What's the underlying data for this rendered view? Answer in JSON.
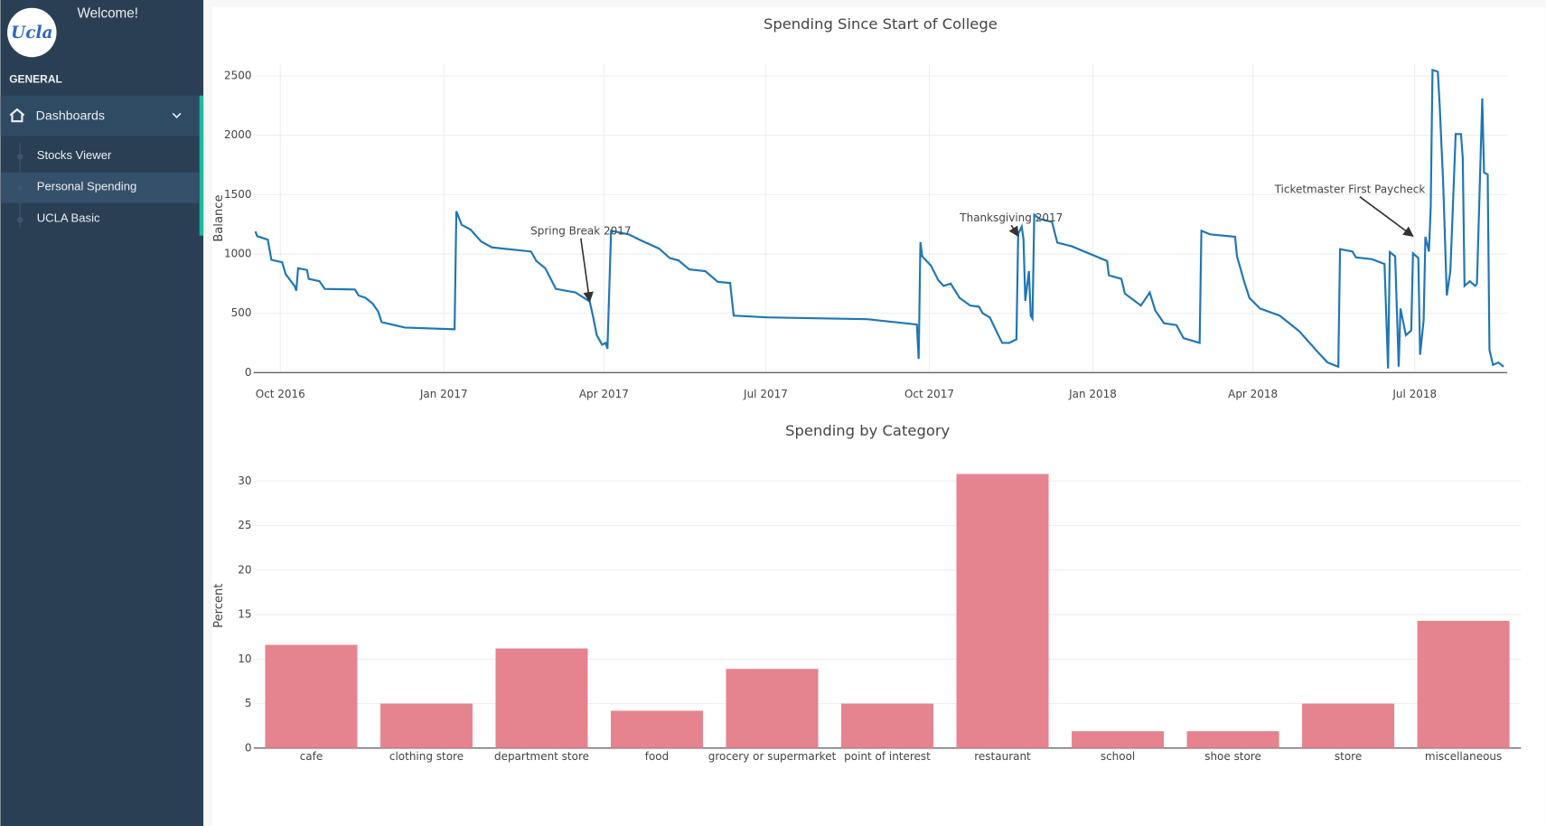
{
  "sidebar": {
    "welcome": "Welcome!",
    "logo": "Ucla",
    "section": "GENERAL",
    "menu": "Dashboards",
    "items": [
      "Stocks Viewer",
      "Personal Spending",
      "UCLA Basic"
    ],
    "active": 1
  },
  "chart_data": [
    {
      "type": "line",
      "title": "Spending Since Start of College",
      "y_label": "Balance",
      "color": "#1f77b4",
      "grid": true,
      "xlim": [
        "2016-09-16",
        "2018-08-22"
      ],
      "ylim": [
        0,
        2600
      ],
      "xticks": [
        {
          "value": "2016-10-01",
          "label": "Oct 2016"
        },
        {
          "value": "2017-01-01",
          "label": "Jan 2017"
        },
        {
          "value": "2017-04-01",
          "label": "Apr 2017"
        },
        {
          "value": "2017-07-01",
          "label": "Jul 2017"
        },
        {
          "value": "2017-10-01",
          "label": "Oct 2017"
        },
        {
          "value": "2018-01-01",
          "label": "Jan 2018"
        },
        {
          "value": "2018-04-01",
          "label": "Apr 2018"
        },
        {
          "value": "2018-07-01",
          "label": "Jul 2018"
        }
      ],
      "yticks": [
        0,
        500,
        1000,
        1500,
        2000,
        2500
      ],
      "annotations": [
        {
          "text": "Spring Break 2017",
          "x": "2017-03-24",
          "y": 600
        },
        {
          "text": "Thanksgiving 2017",
          "x": "2017-11-20",
          "y": 1150
        },
        {
          "text": "Ticketmaster First Paycheck",
          "x": "2018-06-30",
          "y": 1150
        }
      ],
      "x": [
        "2016-09-17",
        "2016-09-18",
        "2016-09-24",
        "2016-09-26",
        "2016-10-02",
        "2016-10-04",
        "2016-10-09",
        "2016-10-10",
        "2016-10-11",
        "2016-10-16",
        "2016-10-17",
        "2016-10-23",
        "2016-10-26",
        "2016-11-12",
        "2016-11-14",
        "2016-11-18",
        "2016-11-22",
        "2016-11-25",
        "2016-11-27",
        "2016-12-10",
        "2017-01-07",
        "2017-01-08",
        "2017-01-11",
        "2017-01-16",
        "2017-01-22",
        "2017-01-28",
        "2017-02-19",
        "2017-02-22",
        "2017-02-27",
        "2017-03-05",
        "2017-03-16",
        "2017-03-24",
        "2017-03-26",
        "2017-03-28",
        "2017-03-31",
        "2017-04-02",
        "2017-04-03",
        "2017-04-05",
        "2017-04-15",
        "2017-04-21",
        "2017-05-02",
        "2017-05-08",
        "2017-05-13",
        "2017-05-19",
        "2017-05-28",
        "2017-06-04",
        "2017-06-11",
        "2017-06-13",
        "2017-07-02",
        "2017-08-27",
        "2017-09-24",
        "2017-09-25",
        "2017-09-26",
        "2017-09-27",
        "2017-10-02",
        "2017-10-06",
        "2017-10-09",
        "2017-10-13",
        "2017-10-18",
        "2017-10-24",
        "2017-10-29",
        "2017-10-31",
        "2017-11-04",
        "2017-11-08",
        "2017-11-11",
        "2017-11-15",
        "2017-11-19",
        "2017-11-20",
        "2017-11-22",
        "2017-11-23",
        "2017-11-24",
        "2017-11-26",
        "2017-11-27",
        "2017-11-28",
        "2017-11-29",
        "2017-12-02",
        "2017-12-09",
        "2017-12-12",
        "2017-12-20",
        "2018-01-09",
        "2018-01-10",
        "2018-01-17",
        "2018-01-19",
        "2018-01-28",
        "2018-02-02",
        "2018-02-05",
        "2018-02-10",
        "2018-02-17",
        "2018-02-21",
        "2018-03-02",
        "2018-03-03",
        "2018-03-08",
        "2018-03-22",
        "2018-03-23",
        "2018-03-27",
        "2018-03-30",
        "2018-04-05",
        "2018-04-16",
        "2018-04-27",
        "2018-05-08",
        "2018-05-13",
        "2018-05-19",
        "2018-05-20",
        "2018-05-27",
        "2018-05-29",
        "2018-06-07",
        "2018-06-14",
        "2018-06-16",
        "2018-06-17",
        "2018-06-20",
        "2018-06-22",
        "2018-06-23",
        "2018-06-26",
        "2018-06-29",
        "2018-06-30",
        "2018-07-03",
        "2018-07-04",
        "2018-07-06",
        "2018-07-07",
        "2018-07-09",
        "2018-07-10",
        "2018-07-11",
        "2018-07-14",
        "2018-07-15",
        "2018-07-17",
        "2018-07-19",
        "2018-07-21",
        "2018-07-22",
        "2018-07-24",
        "2018-07-27",
        "2018-07-28",
        "2018-07-29",
        "2018-08-01",
        "2018-08-04",
        "2018-08-05",
        "2018-08-08",
        "2018-08-09",
        "2018-08-11",
        "2018-08-12",
        "2018-08-14",
        "2018-08-17",
        "2018-08-20"
      ],
      "values": [
        1190,
        1150,
        1120,
        950,
        930,
        830,
        730,
        690,
        880,
        865,
        790,
        770,
        705,
        700,
        650,
        630,
        580,
        515,
        425,
        380,
        365,
        1360,
        1245,
        1205,
        1105,
        1055,
        1020,
        940,
        880,
        705,
        675,
        600,
        465,
        315,
        235,
        250,
        200,
        1195,
        1165,
        1120,
        1045,
        965,
        945,
        870,
        855,
        765,
        755,
        480,
        465,
        450,
        405,
        115,
        1100,
        980,
        900,
        780,
        730,
        750,
        630,
        565,
        555,
        500,
        465,
        340,
        250,
        250,
        280,
        1170,
        1230,
        1120,
        605,
        855,
        480,
        455,
        1330,
        1295,
        1270,
        1095,
        1065,
        940,
        820,
        790,
        665,
        565,
        675,
        525,
        415,
        400,
        290,
        250,
        1195,
        1165,
        1145,
        980,
        770,
        630,
        540,
        480,
        350,
        165,
        85,
        50,
        1040,
        1020,
        970,
        955,
        915,
        35,
        1015,
        980,
        50,
        540,
        315,
        355,
        1005,
        965,
        150,
        440,
        1145,
        1020,
        1395,
        2550,
        2535,
        2265,
        1605,
        650,
        855,
        1230,
        2010,
        2010,
        1810,
        730,
        770,
        730,
        750,
        2310,
        1685,
        1670,
        190,
        65,
        85,
        50
      ]
    },
    {
      "type": "bar",
      "title": "Spending by Category",
      "y_label": "Percent",
      "color": "#e5838e",
      "grid": true,
      "ylim": [
        0,
        32
      ],
      "yticks": [
        0,
        5,
        10,
        15,
        20,
        25,
        30
      ],
      "categories": [
        "cafe",
        "clothing store",
        "department store",
        "food",
        "grocery or supermarket",
        "point of interest",
        "restaurant",
        "school",
        "shoe store",
        "store",
        "miscellaneous"
      ],
      "values": [
        11.6,
        5,
        11.2,
        4.2,
        8.9,
        5,
        30.8,
        1.9,
        1.9,
        5,
        14.3
      ]
    }
  ]
}
